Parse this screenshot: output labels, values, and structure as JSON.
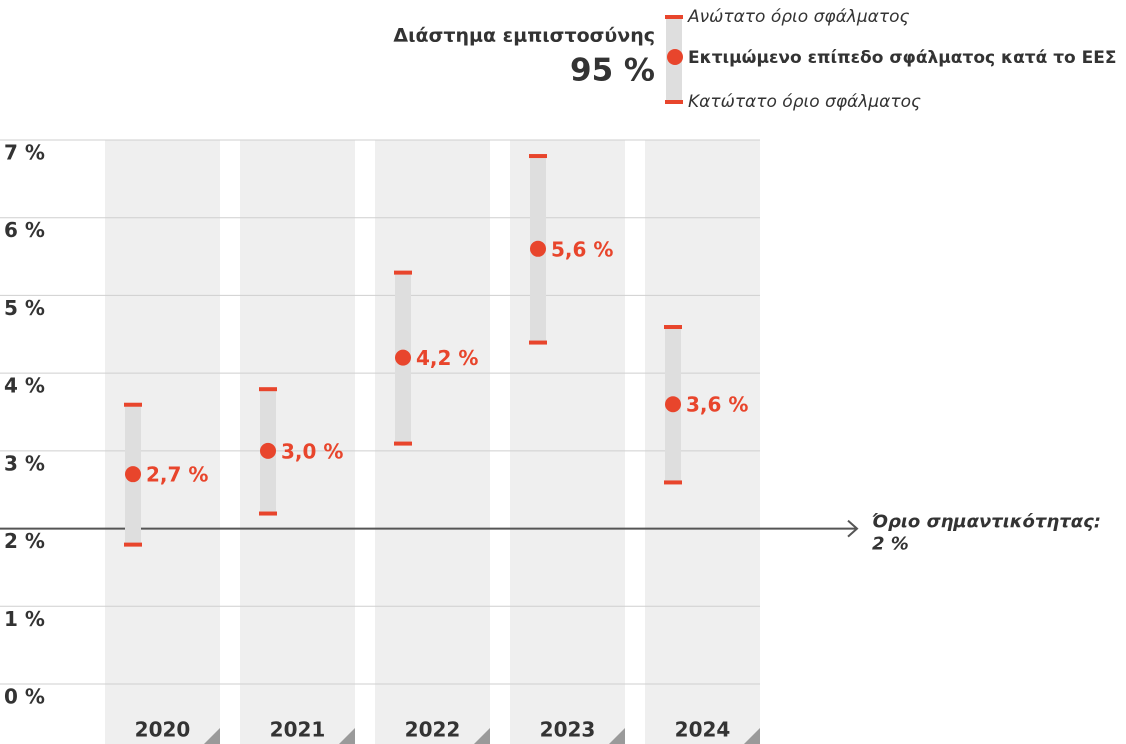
{
  "chart_data": {
    "type": "interval",
    "legend_title": "Διάστημα εμπιστοσύνης",
    "legend_level": "95 %",
    "categories": [
      "2020",
      "2021",
      "2022",
      "2023",
      "2024"
    ],
    "series": [
      {
        "name": "Ανώτατο όριο σφάλματος",
        "role": "upper",
        "color": "#e8452c",
        "values": [
          3.6,
          3.8,
          5.3,
          6.8,
          4.6
        ]
      },
      {
        "name": "Εκτιμώμενο επίπεδο σφάλματος κατά το ΕΕΣ",
        "role": "estimate",
        "color": "#e8452c",
        "values": [
          2.7,
          3.0,
          4.2,
          5.6,
          3.6
        ],
        "value_labels": [
          "2,7 %",
          "3,0 %",
          "4,2 %",
          "5,6 %",
          "3,6 %"
        ]
      },
      {
        "name": "Κατώτατο όριο σφάλματος",
        "role": "lower",
        "color": "#e8452c",
        "values": [
          1.8,
          2.2,
          3.1,
          4.4,
          2.6
        ]
      }
    ],
    "ylim": [
      0,
      7
    ],
    "yticks": [
      {
        "value": 0,
        "label": "0 %"
      },
      {
        "value": 1,
        "label": "1 %"
      },
      {
        "value": 2,
        "label": "2 %"
      },
      {
        "value": 3,
        "label": "3 %"
      },
      {
        "value": 4,
        "label": "4 %"
      },
      {
        "value": 5,
        "label": "5 %"
      },
      {
        "value": 6,
        "label": "6 %"
      },
      {
        "value": 7,
        "label": "7 %"
      }
    ],
    "grid": true,
    "threshold": {
      "text": "Όριο σημαντικότητας:",
      "value": 2,
      "label": "2 %"
    }
  }
}
